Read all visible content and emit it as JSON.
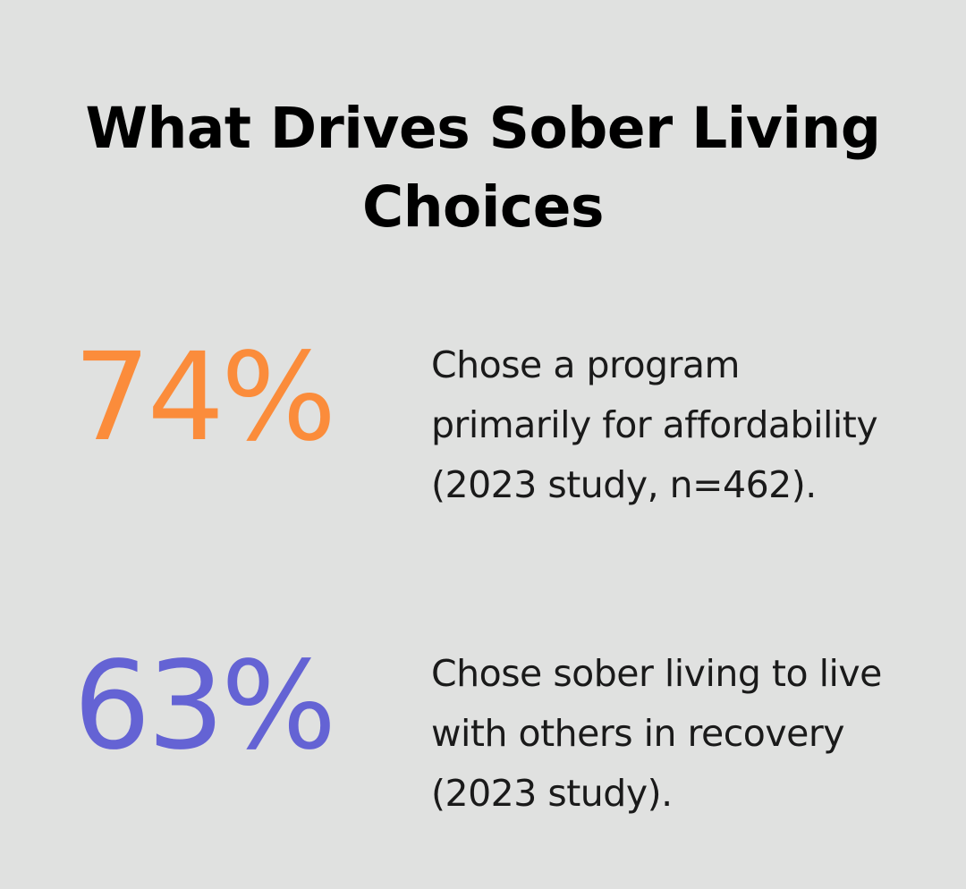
{
  "title": "What Drives Sober Living Choices",
  "colors": {
    "background": "#e0e1e0",
    "stat_1": "#fb8c3b",
    "stat_2": "#6463d4",
    "text": "#1a1a1a"
  },
  "stats": [
    {
      "value": "74%",
      "description": "Chose a program primarily for affordability (2023 study, n=462)."
    },
    {
      "value": "63%",
      "description": "Chose sober living to live with others in recovery (2023 study)."
    }
  ]
}
